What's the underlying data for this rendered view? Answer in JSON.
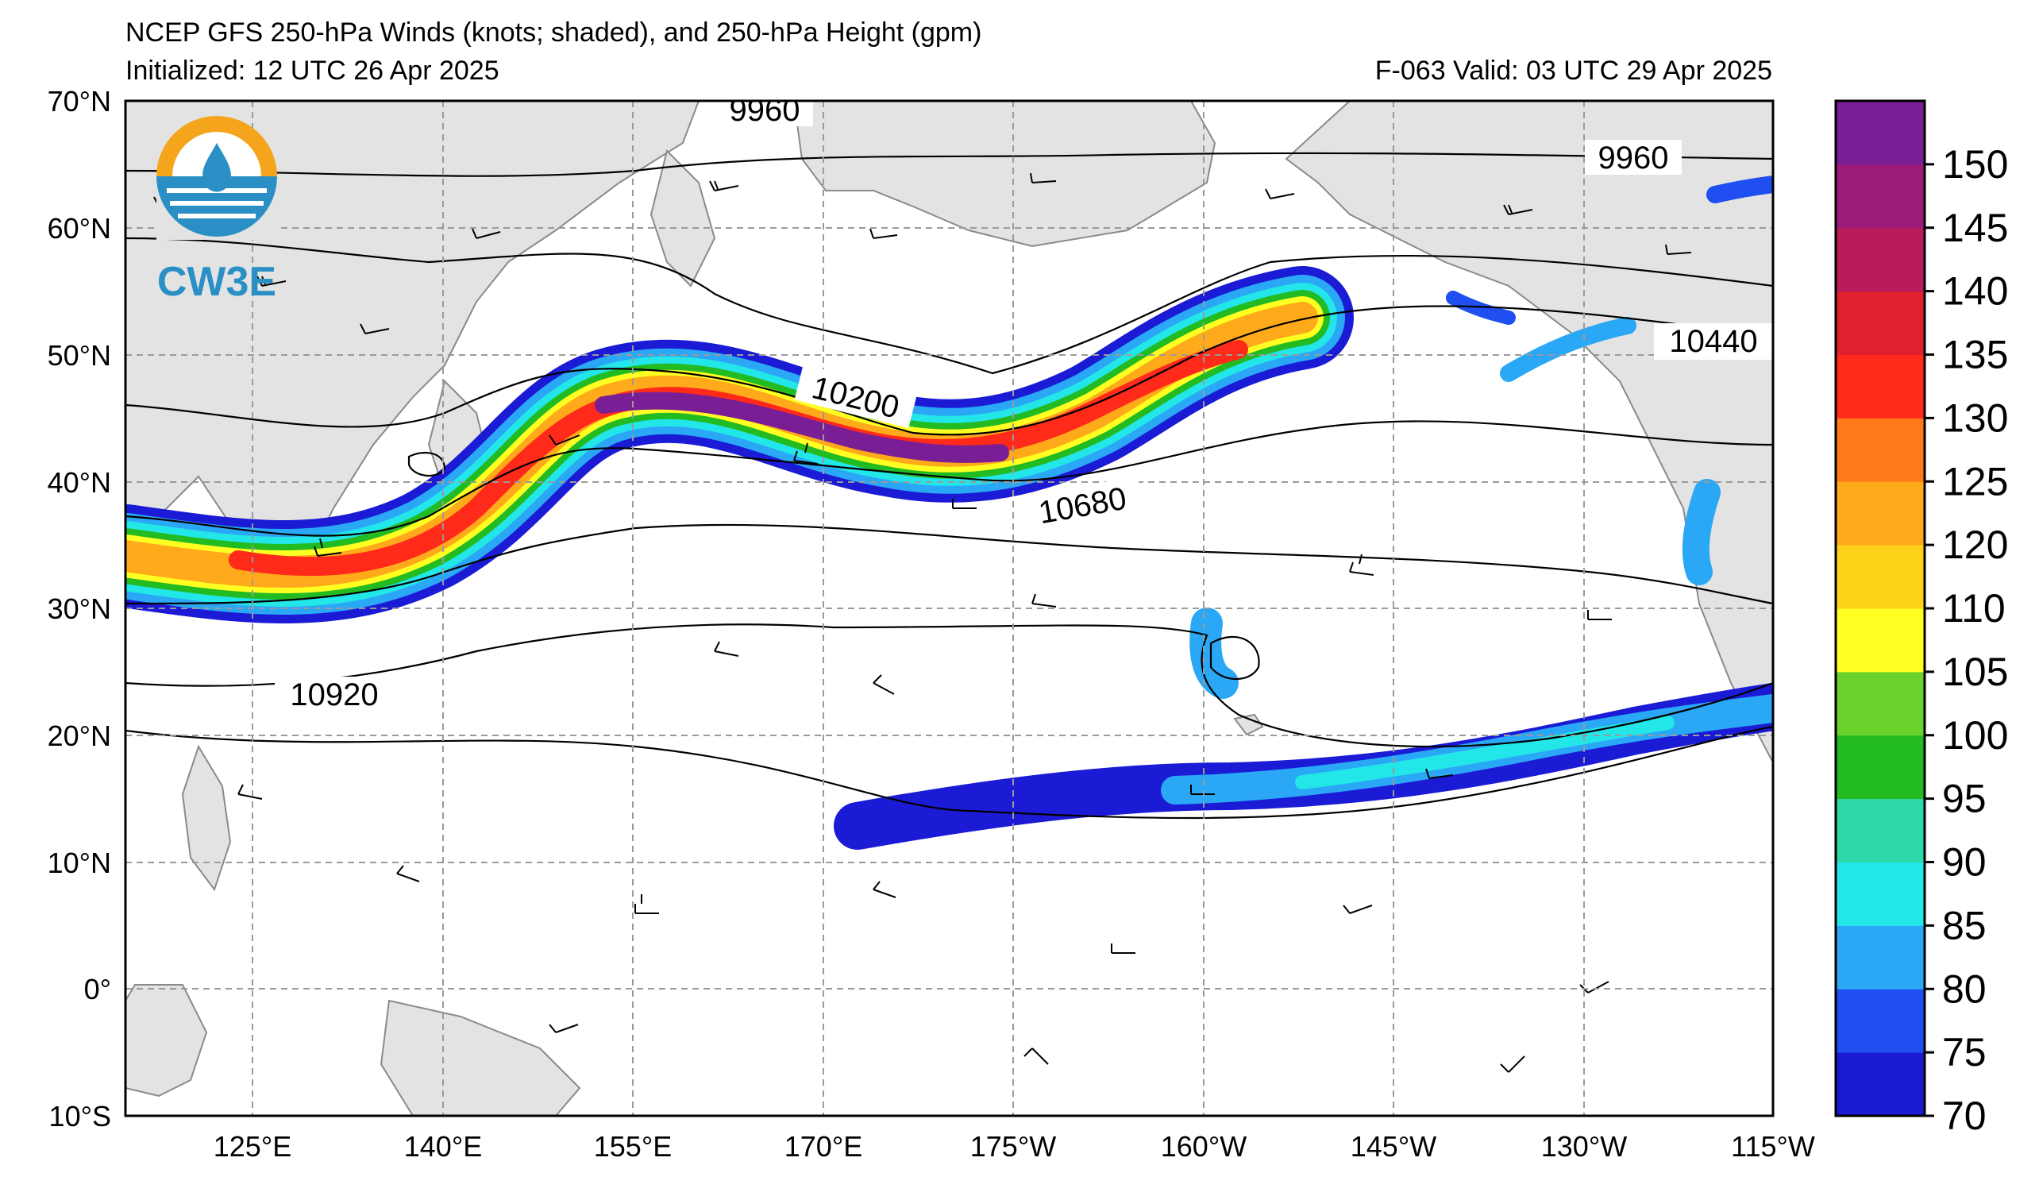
{
  "header": {
    "title": "NCEP GFS 250-hPa Winds (knots; shaded), and 250-hPa Height (gpm)",
    "initialized": "Initialized: 12 UTC 26 Apr 2025",
    "valid": "F-063  Valid: 03 UTC 29 Apr 2025"
  },
  "logo": {
    "text": "CW3E"
  },
  "axes": {
    "lat_labels": [
      "70°N",
      "60°N",
      "50°N",
      "40°N",
      "30°N",
      "20°N",
      "10°N",
      "0°",
      "10°S"
    ],
    "lon_labels": [
      "125°E",
      "140°E",
      "155°E",
      "170°E",
      "175°W",
      "160°W",
      "145°W",
      "130°W",
      "115°W"
    ]
  },
  "contours": {
    "labels": [
      "9960",
      "9960",
      "10200",
      "10440",
      "10680",
      "10920"
    ]
  },
  "colorbar": {
    "ticks": [
      "70",
      "75",
      "80",
      "85",
      "90",
      "95",
      "100",
      "105",
      "110",
      "120",
      "125",
      "130",
      "135",
      "140",
      "145",
      "150"
    ],
    "colors": [
      "#1b1bd6",
      "#1f4ff0",
      "#2aa8f6",
      "#23e6e8",
      "#2ed8a8",
      "#22bb22",
      "#6bd12b",
      "#ffff22",
      "#ffd21a",
      "#ffaa1a",
      "#ff7a1a",
      "#ff2a1a",
      "#e0202e",
      "#b81c5a",
      "#9a1c78",
      "#7a1e96"
    ]
  },
  "colors": {
    "land": "#e3e3e3",
    "coast": "#8a8a8a",
    "grid": "#9a9a9a",
    "logo_orange": "#f4a51c",
    "logo_blue": "#2a8fc4"
  }
}
